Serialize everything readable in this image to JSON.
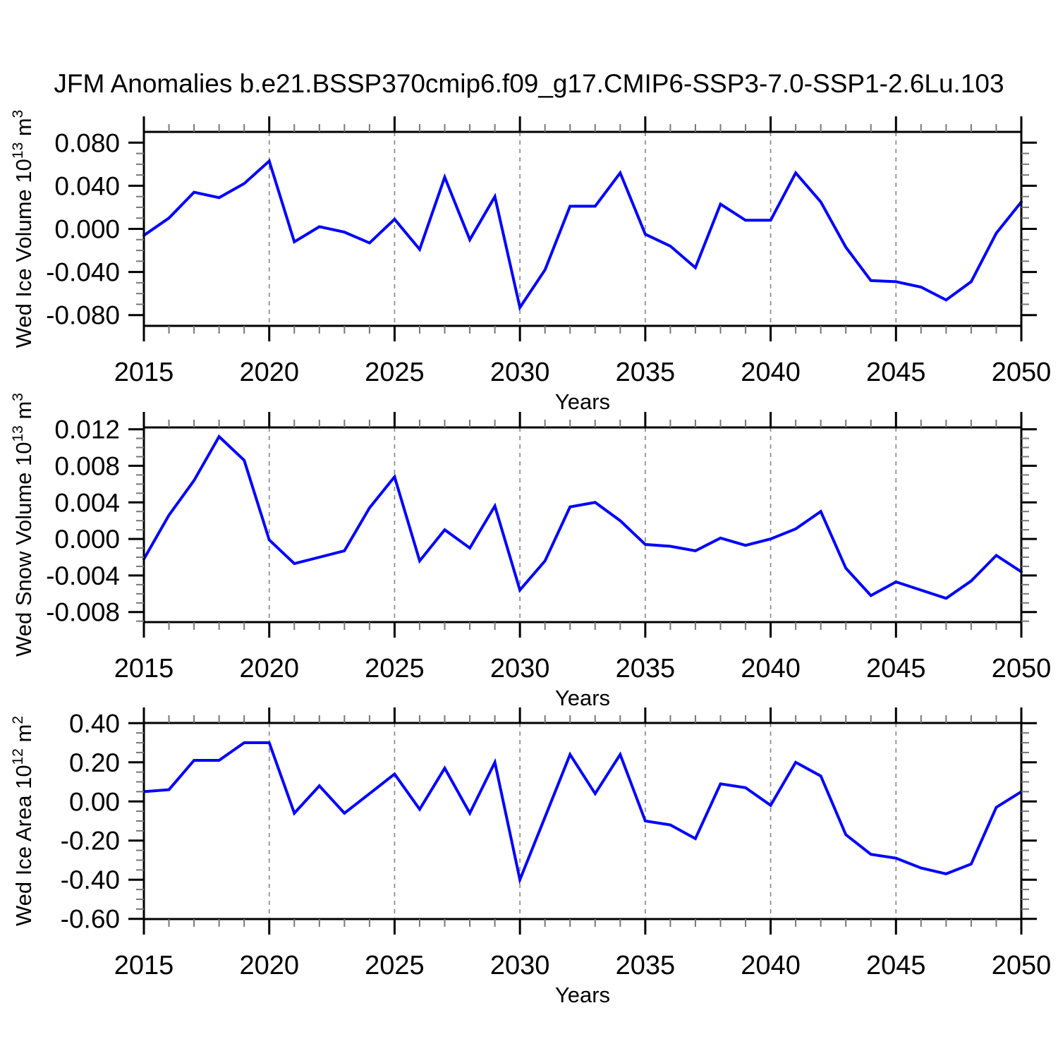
{
  "title": "JFM Anomalies b.e21.BSSP370cmip6.f09_g17.CMIP6-SSP3-7.0-SSP1-2.6Lu.103",
  "chart_data": {
    "type": "line",
    "x_label": "Years",
    "x": [
      2015,
      2016,
      2017,
      2018,
      2019,
      2020,
      2021,
      2022,
      2023,
      2024,
      2025,
      2026,
      2027,
      2028,
      2029,
      2030,
      2031,
      2032,
      2033,
      2034,
      2035,
      2036,
      2037,
      2038,
      2039,
      2040,
      2041,
      2042,
      2043,
      2044,
      2045,
      2046,
      2047,
      2048,
      2049,
      2050
    ],
    "x_major_ticks": [
      2015,
      2020,
      2025,
      2030,
      2035,
      2040,
      2045,
      2050
    ],
    "x_minor_step": 1,
    "grid_years": [
      2020,
      2025,
      2030,
      2035,
      2040,
      2045
    ],
    "grid_style": "dashed-vertical",
    "line_color": "#0000ff",
    "axis_color": "#000000",
    "grid_color": "#848484",
    "minor_tick_color": "#777777",
    "panels": [
      {
        "id": "wed-ice-volume",
        "ylabel_parts": [
          {
            "t": "Wed Ice Volume 10"
          },
          {
            "t": "13",
            "sup": true
          },
          {
            "t": " m"
          },
          {
            "t": "3",
            "sup": true
          }
        ],
        "ylabel_plain": "Wed Ice Volume 10^13 m^3",
        "ylim": [
          -0.09,
          0.09
        ],
        "yticks": [
          {
            "v": 0.08,
            "label": "0.080"
          },
          {
            "v": 0.04,
            "label": "0.040"
          },
          {
            "v": 0.0,
            "label": "0.000"
          },
          {
            "v": -0.04,
            "label": "-0.040"
          },
          {
            "v": -0.08,
            "label": "-0.080"
          }
        ],
        "y_minor_step": 0.01,
        "series_name": "Wed Ice Volume anomaly",
        "values": [
          -0.006,
          0.01,
          0.034,
          0.029,
          0.042,
          0.063,
          -0.012,
          0.002,
          -0.003,
          -0.013,
          0.009,
          -0.019,
          0.048,
          -0.01,
          0.03,
          -0.073,
          -0.038,
          0.021,
          0.021,
          0.052,
          -0.005,
          -0.016,
          -0.036,
          0.023,
          0.008,
          0.008,
          0.052,
          0.025,
          -0.017,
          -0.048,
          -0.049,
          -0.054,
          -0.066,
          -0.049,
          -0.004,
          0.025
        ]
      },
      {
        "id": "wed-snow-volume",
        "ylabel_parts": [
          {
            "t": "Wed Snow Volume 10"
          },
          {
            "t": "13",
            "sup": true
          },
          {
            "t": " m"
          },
          {
            "t": "3",
            "sup": true
          }
        ],
        "ylabel_plain": "Wed Snow Volume 10^13 m^3",
        "ylim": [
          -0.0091,
          0.0122
        ],
        "yticks": [
          {
            "v": 0.012,
            "label": "0.012"
          },
          {
            "v": 0.008,
            "label": "0.008"
          },
          {
            "v": 0.004,
            "label": "0.004"
          },
          {
            "v": 0.0,
            "label": "0.000"
          },
          {
            "v": -0.004,
            "label": "-0.004"
          },
          {
            "v": -0.008,
            "label": "-0.008"
          }
        ],
        "y_minor_step": 0.001,
        "series_name": "Wed Snow Volume anomaly",
        "values": [
          -0.0022,
          0.0026,
          0.0064,
          0.0112,
          0.0086,
          -0.0001,
          -0.0027,
          -0.002,
          -0.0013,
          0.0034,
          0.0068,
          -0.0024,
          0.001,
          -0.001,
          0.0036,
          -0.0056,
          -0.0024,
          0.0035,
          0.004,
          0.002,
          -0.0006,
          -0.0008,
          -0.0013,
          0.0001,
          -0.0007,
          0.0,
          0.0011,
          0.003,
          -0.0032,
          -0.0062,
          -0.0047,
          -0.0056,
          -0.0065,
          -0.0046,
          -0.0018,
          -0.0036
        ]
      },
      {
        "id": "wed-ice-area",
        "ylabel_parts": [
          {
            "t": "Wed Ice Area 10"
          },
          {
            "t": "12",
            "sup": true
          },
          {
            "t": " m"
          },
          {
            "t": "2",
            "sup": true
          }
        ],
        "ylabel_plain": "Wed Ice Area 10^12 m^2",
        "ylim": [
          -0.601,
          0.401
        ],
        "yticks": [
          {
            "v": 0.4,
            "label": "0.40"
          },
          {
            "v": 0.2,
            "label": "0.20"
          },
          {
            "v": 0.0,
            "label": "0.00"
          },
          {
            "v": -0.2,
            "label": "-0.20"
          },
          {
            "v": -0.4,
            "label": "-0.40"
          },
          {
            "v": -0.6,
            "label": "-0.60"
          }
        ],
        "y_minor_step": 0.05,
        "series_name": "Wed Ice Area anomaly",
        "values": [
          0.05,
          0.06,
          0.21,
          0.21,
          0.3,
          0.3,
          -0.06,
          0.08,
          -0.06,
          0.04,
          0.14,
          -0.04,
          0.17,
          -0.06,
          0.2,
          -0.4,
          -0.08,
          0.24,
          0.04,
          0.24,
          -0.1,
          -0.12,
          -0.19,
          0.09,
          0.07,
          -0.02,
          0.2,
          0.13,
          -0.17,
          -0.27,
          -0.29,
          -0.34,
          -0.37,
          -0.32,
          -0.03,
          0.05
        ]
      }
    ]
  }
}
